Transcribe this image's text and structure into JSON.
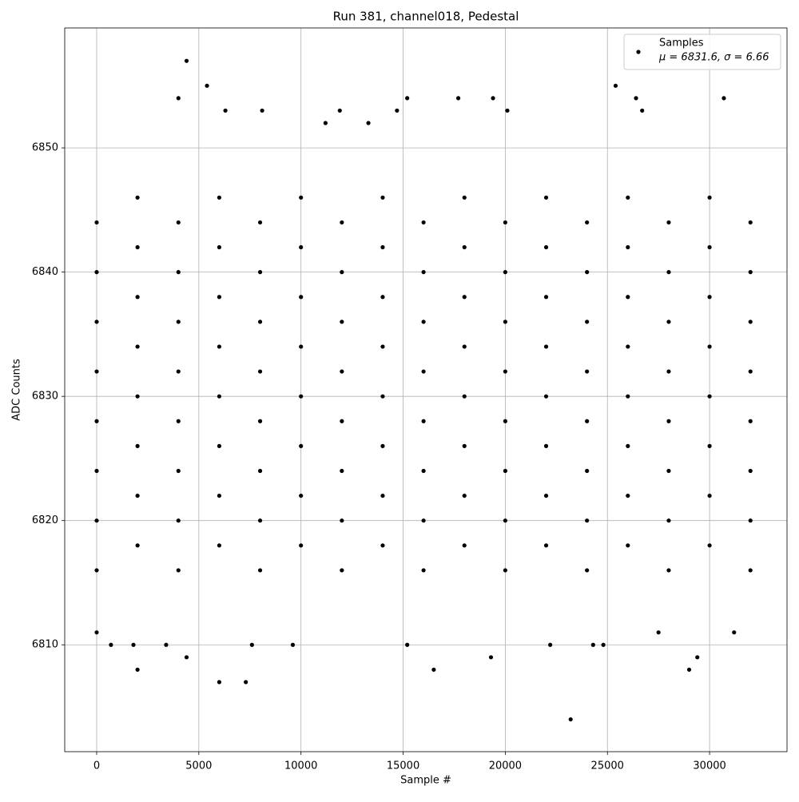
{
  "chart_data": {
    "type": "scatter",
    "title": "Run 381, channel018, Pedestal",
    "x_label": "Sample #",
    "y_label": "ADC Counts",
    "legend_note": "μ = 6831.6, σ = 6.66",
    "legend": "upper right",
    "grid": true,
    "xlim": [
      -1564,
      33790
    ],
    "ylim": [
      6801.4,
      6859.65
    ],
    "xticks": [
      0,
      5000,
      10000,
      15000,
      20000,
      25000,
      30000
    ],
    "yticks": [
      6810,
      6820,
      6830,
      6840,
      6850
    ],
    "series": [
      {
        "name": "Samples",
        "color": "#000000",
        "x": [
          0,
          0,
          0,
          0,
          0,
          0,
          0,
          0,
          2000,
          2000,
          2000,
          2000,
          2000,
          2000,
          2000,
          2000,
          4000,
          4000,
          4000,
          4000,
          4000,
          4000,
          4000,
          4000,
          6000,
          6000,
          6000,
          6000,
          6000,
          6000,
          6000,
          6000,
          8000,
          8000,
          8000,
          8000,
          8000,
          8000,
          8000,
          8000,
          10000,
          10000,
          10000,
          10000,
          10000,
          10000,
          10000,
          10000,
          12000,
          12000,
          12000,
          12000,
          12000,
          12000,
          12000,
          12000,
          14000,
          14000,
          14000,
          14000,
          14000,
          14000,
          14000,
          14000,
          16000,
          16000,
          16000,
          16000,
          16000,
          16000,
          16000,
          16000,
          18000,
          18000,
          18000,
          18000,
          18000,
          18000,
          18000,
          18000,
          20000,
          20000,
          20000,
          20000,
          20000,
          20000,
          20000,
          20000,
          22000,
          22000,
          22000,
          22000,
          22000,
          22000,
          22000,
          22000,
          24000,
          24000,
          24000,
          24000,
          24000,
          24000,
          24000,
          24000,
          26000,
          26000,
          26000,
          26000,
          26000,
          26000,
          26000,
          26000,
          28000,
          28000,
          28000,
          28000,
          28000,
          28000,
          28000,
          28000,
          30000,
          30000,
          30000,
          30000,
          30000,
          30000,
          30000,
          30000,
          32000,
          32000,
          32000,
          32000,
          32000,
          32000,
          32000,
          32000,
          4400,
          5400,
          4000,
          15200,
          19400,
          30700,
          25400,
          26400,
          23200,
          6000,
          7300,
          2000,
          16500,
          29000,
          29400,
          4400,
          19300,
          9600,
          700,
          3400,
          7600,
          22200,
          24300,
          24800,
          1800,
          15200,
          0,
          31200,
          26700,
          27500,
          11900,
          13300,
          20100,
          17700,
          6300,
          8100,
          11200,
          14700
        ],
        "values": [
          6816,
          6820,
          6824,
          6828,
          6832,
          6836,
          6840,
          6844,
          6818,
          6822,
          6826,
          6830,
          6834,
          6838,
          6842,
          6846,
          6816,
          6820,
          6824,
          6828,
          6832,
          6836,
          6840,
          6844,
          6818,
          6822,
          6826,
          6830,
          6834,
          6838,
          6842,
          6846,
          6816,
          6820,
          6824,
          6828,
          6832,
          6836,
          6840,
          6844,
          6818,
          6822,
          6826,
          6830,
          6834,
          6838,
          6842,
          6846,
          6816,
          6820,
          6824,
          6828,
          6832,
          6836,
          6840,
          6844,
          6818,
          6822,
          6826,
          6830,
          6834,
          6838,
          6842,
          6846,
          6816,
          6820,
          6824,
          6828,
          6832,
          6836,
          6840,
          6844,
          6818,
          6822,
          6826,
          6830,
          6834,
          6838,
          6842,
          6846,
          6816,
          6820,
          6824,
          6828,
          6832,
          6836,
          6840,
          6844,
          6818,
          6822,
          6826,
          6830,
          6834,
          6838,
          6842,
          6846,
          6816,
          6820,
          6824,
          6828,
          6832,
          6836,
          6840,
          6844,
          6818,
          6822,
          6826,
          6830,
          6834,
          6838,
          6842,
          6846,
          6816,
          6820,
          6824,
          6828,
          6832,
          6836,
          6840,
          6844,
          6818,
          6822,
          6826,
          6830,
          6834,
          6838,
          6842,
          6846,
          6816,
          6820,
          6824,
          6828,
          6832,
          6836,
          6840,
          6844,
          6857,
          6855,
          6854,
          6854,
          6854,
          6854,
          6855,
          6854,
          6804,
          6807,
          6807,
          6808,
          6808,
          6808,
          6809,
          6809,
          6809,
          6810,
          6810,
          6810,
          6810,
          6810,
          6810,
          6810,
          6810,
          6810,
          6811,
          6811,
          6853,
          6811,
          6853,
          6852,
          6853,
          6854,
          6853,
          6853,
          6852,
          6853
        ]
      }
    ]
  }
}
